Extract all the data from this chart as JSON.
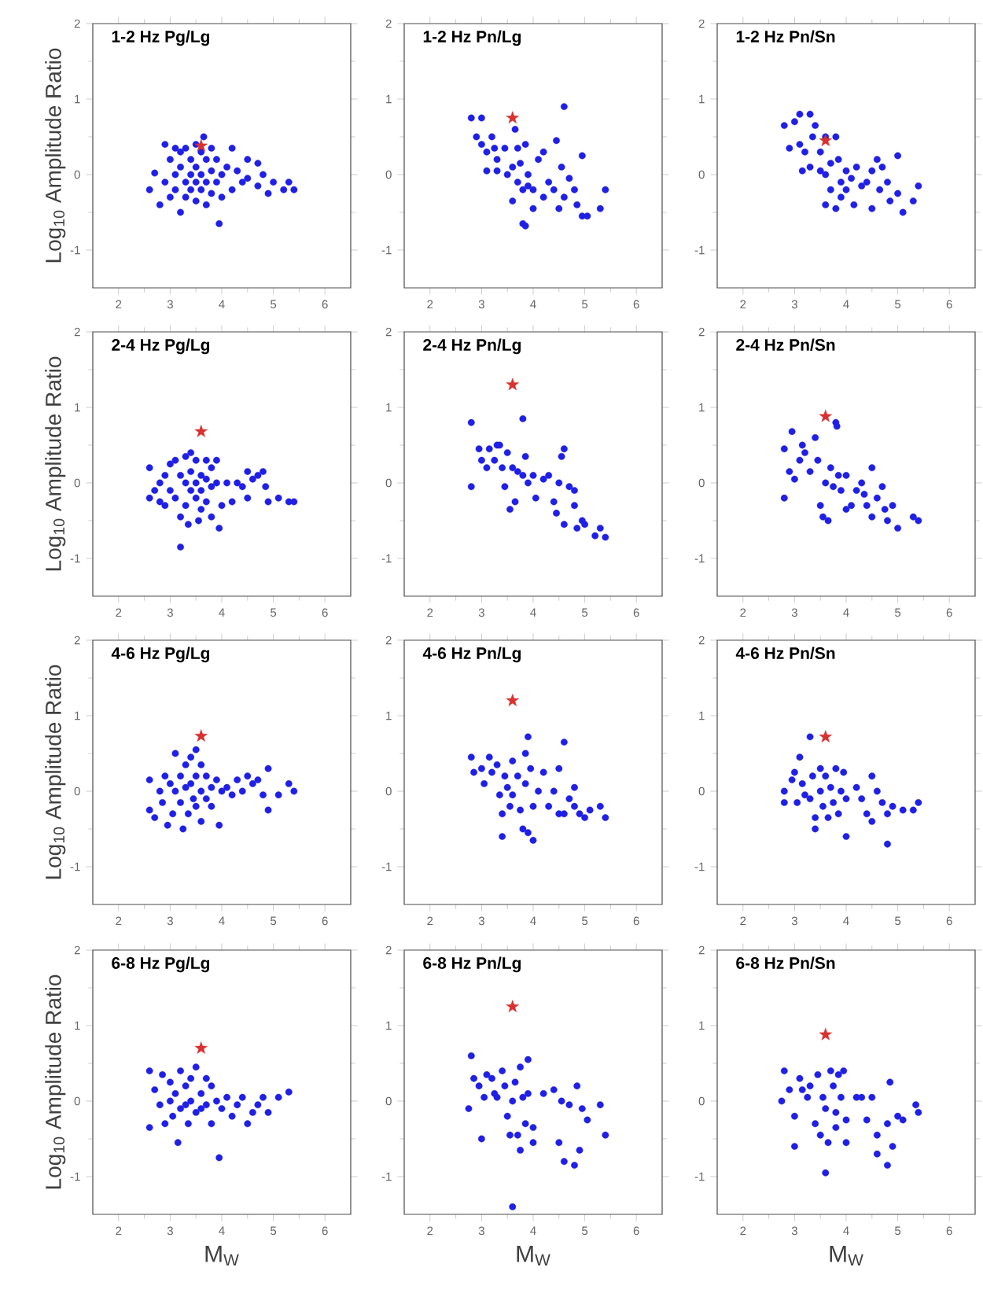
{
  "chart_data": [
    {
      "type": "scatter",
      "title": "1-2 Hz Pg/Lg",
      "ylabel": "Log$_{10}$ Amplitude Ratio",
      "xlim": [
        1.5,
        6.5
      ],
      "xticks": [
        2,
        3,
        4,
        5,
        6
      ],
      "ylim": [
        -1.5,
        2
      ],
      "yticks": [
        -1,
        0,
        1,
        2
      ],
      "series": [
        {
          "color": "#1f1fe6",
          "marker": "circle",
          "x": [
            2.6,
            2.7,
            2.8,
            2.9,
            2.9,
            3.0,
            3.0,
            3.1,
            3.1,
            3.1,
            3.2,
            3.2,
            3.2,
            3.3,
            3.3,
            3.3,
            3.4,
            3.4,
            3.4,
            3.5,
            3.5,
            3.5,
            3.5,
            3.6,
            3.6,
            3.6,
            3.65,
            3.7,
            3.7,
            3.7,
            3.8,
            3.8,
            3.8,
            3.9,
            3.9,
            3.95,
            4.0,
            4.0,
            4.1,
            4.2,
            4.2,
            4.3,
            4.4,
            4.5,
            4.5,
            4.7,
            4.7,
            4.8,
            4.9,
            5.0,
            5.2,
            5.3,
            5.4
          ],
          "values": [
            -0.2,
            0.02,
            -0.4,
            0.4,
            -0.1,
            0.2,
            -0.3,
            0.35,
            0.0,
            -0.2,
            0.3,
            0.1,
            -0.5,
            0.35,
            -0.1,
            -0.3,
            0.2,
            0.0,
            -0.2,
            0.4,
            0.1,
            -0.1,
            -0.35,
            0.3,
            0.0,
            -0.2,
            0.5,
            0.2,
            -0.1,
            -0.4,
            0.35,
            0.05,
            -0.25,
            0.2,
            -0.1,
            -0.65,
            0.0,
            -0.3,
            0.1,
            0.35,
            -0.2,
            0.05,
            -0.1,
            0.2,
            -0.05,
            0.15,
            -0.15,
            0.0,
            -0.25,
            -0.1,
            -0.2,
            -0.1,
            -0.2
          ]
        },
        {
          "color": "#d93030",
          "marker": "star",
          "x": [
            3.6
          ],
          "values": [
            0.38
          ]
        }
      ]
    },
    {
      "type": "scatter",
      "title": "1-2 Hz Pn/Lg",
      "xlim": [
        1.5,
        6.5
      ],
      "xticks": [
        2,
        3,
        4,
        5,
        6
      ],
      "ylim": [
        -1.5,
        2
      ],
      "yticks": [
        -1,
        0,
        1,
        2
      ],
      "series": [
        {
          "color": "#1f1fe6",
          "marker": "circle",
          "x": [
            2.8,
            2.9,
            3.0,
            3.0,
            3.1,
            3.1,
            3.2,
            3.25,
            3.3,
            3.3,
            3.45,
            3.5,
            3.55,
            3.6,
            3.6,
            3.65,
            3.7,
            3.7,
            3.75,
            3.8,
            3.8,
            3.85,
            3.85,
            3.9,
            3.9,
            4.0,
            4.0,
            4.1,
            4.2,
            4.2,
            4.3,
            4.4,
            4.45,
            4.5,
            4.55,
            4.6,
            4.6,
            4.7,
            4.8,
            4.85,
            4.95,
            4.95,
            5.05,
            5.3,
            5.4
          ],
          "values": [
            0.75,
            0.5,
            0.75,
            0.4,
            0.3,
            0.05,
            0.5,
            0.35,
            0.2,
            0.05,
            0.35,
            0.0,
            null,
            0.1,
            -0.35,
            0.6,
            0.35,
            -0.1,
            0.15,
            -0.2,
            -0.65,
            -0.68,
            0.4,
            0.0,
            -0.15,
            -0.2,
            -0.45,
            0.2,
            0.3,
            -0.3,
            -0.1,
            -0.2,
            0.45,
            -0.45,
            0.1,
            0.9,
            -0.3,
            -0.05,
            -0.2,
            -0.4,
            0.25,
            -0.55,
            -0.55,
            -0.45,
            -0.2
          ]
        },
        {
          "color": "#d93030",
          "marker": "star",
          "x": [
            3.6
          ],
          "values": [
            0.75
          ]
        }
      ]
    },
    {
      "type": "scatter",
      "title": "1-2 Hz Pn/Sn",
      "xlim": [
        1.5,
        6.5
      ],
      "xticks": [
        2,
        3,
        4,
        5,
        6
      ],
      "ylim": [
        -1.5,
        2
      ],
      "yticks": [
        -1,
        0,
        1,
        2
      ],
      "series": [
        {
          "color": "#1f1fe6",
          "marker": "circle",
          "x": [
            2.8,
            2.9,
            3.0,
            3.1,
            3.1,
            3.15,
            3.2,
            3.3,
            3.3,
            3.35,
            3.4,
            3.5,
            3.5,
            3.6,
            3.6,
            3.6,
            3.7,
            3.7,
            3.8,
            3.8,
            3.85,
            3.9,
            3.9,
            4.0,
            4.0,
            4.1,
            4.15,
            4.2,
            4.3,
            4.4,
            4.5,
            4.5,
            4.6,
            4.65,
            4.7,
            4.8,
            4.85,
            5.0,
            5.0,
            5.1,
            5.3,
            5.4
          ],
          "values": [
            0.65,
            0.35,
            0.7,
            0.8,
            0.4,
            0.05,
            0.3,
            0.8,
            0.1,
            0.5,
            0.65,
            0.3,
            0.05,
            0.5,
            0.0,
            -0.4,
            0.15,
            -0.2,
            0.5,
            -0.45,
            0.2,
            -0.1,
            -0.3,
            0.05,
            -0.2,
            -0.05,
            -0.4,
            0.1,
            -0.15,
            -0.1,
            0.05,
            -0.45,
            0.2,
            -0.2,
            0.1,
            -0.1,
            -0.35,
            0.25,
            -0.25,
            -0.5,
            -0.35,
            -0.15
          ]
        },
        {
          "color": "#d93030",
          "marker": "star",
          "x": [
            3.6
          ],
          "values": [
            0.45
          ]
        }
      ]
    },
    {
      "type": "scatter",
      "title": "2-4 Hz Pg/Lg",
      "ylabel": "Log$_{10}$ Amplitude Ratio",
      "xlim": [
        1.5,
        6.5
      ],
      "xticks": [
        2,
        3,
        4,
        5,
        6
      ],
      "ylim": [
        -1.5,
        2
      ],
      "yticks": [
        -1,
        0,
        1,
        2
      ],
      "series": [
        {
          "color": "#1f1fe6",
          "marker": "circle",
          "x": [
            2.6,
            2.6,
            2.7,
            2.8,
            2.8,
            2.9,
            2.9,
            3.0,
            3.0,
            3.1,
            3.1,
            3.2,
            3.2,
            3.2,
            3.3,
            3.3,
            3.3,
            3.35,
            3.4,
            3.4,
            3.4,
            3.5,
            3.5,
            3.5,
            3.55,
            3.6,
            3.6,
            3.6,
            3.7,
            3.7,
            3.7,
            3.8,
            3.8,
            3.8,
            3.9,
            3.9,
            3.95,
            4.0,
            4.1,
            4.2,
            4.3,
            4.4,
            4.5,
            4.5,
            4.6,
            4.7,
            4.8,
            4.85,
            4.9,
            5.1,
            5.3,
            5.4
          ],
          "values": [
            0.2,
            -0.2,
            -0.1,
            0.0,
            -0.25,
            0.1,
            -0.3,
            0.25,
            -0.1,
            0.3,
            -0.2,
            -0.85,
            0.1,
            -0.45,
            0.35,
            0.0,
            -0.3,
            -0.55,
            0.4,
            0.15,
            -0.1,
            0.3,
            0.0,
            -0.2,
            -0.5,
            0.1,
            -0.1,
            -0.35,
            0.3,
            0.05,
            -0.25,
            0.2,
            -0.05,
            -0.45,
            0.3,
            0.0,
            -0.6,
            -0.3,
            0.0,
            -0.25,
            0.0,
            -0.05,
            0.15,
            -0.2,
            0.05,
            0.1,
            0.15,
            -0.05,
            -0.25,
            -0.2,
            -0.25,
            -0.25
          ]
        },
        {
          "color": "#d93030",
          "marker": "star",
          "x": [
            3.6
          ],
          "values": [
            0.68
          ]
        }
      ]
    },
    {
      "type": "scatter",
      "title": "2-4 Hz Pn/Lg",
      "xlim": [
        1.5,
        6.5
      ],
      "xticks": [
        2,
        3,
        4,
        5,
        6
      ],
      "ylim": [
        -1.5,
        2
      ],
      "yticks": [
        -1,
        0,
        1,
        2
      ],
      "series": [
        {
          "color": "#1f1fe6",
          "marker": "circle",
          "x": [
            2.8,
            2.8,
            2.95,
            3.0,
            3.1,
            3.15,
            3.25,
            3.3,
            3.35,
            3.4,
            3.45,
            3.5,
            3.55,
            3.6,
            3.65,
            3.7,
            3.8,
            3.8,
            3.85,
            3.9,
            4.0,
            4.05,
            4.2,
            4.3,
            4.4,
            4.45,
            4.5,
            4.55,
            4.6,
            4.6,
            4.7,
            4.8,
            4.8,
            4.85,
            4.95,
            5.0,
            5.2,
            5.3,
            5.4
          ],
          "values": [
            0.8,
            -0.05,
            0.45,
            0.3,
            0.2,
            0.45,
            0.3,
            0.5,
            0.5,
            0.2,
            -0.05,
            0.4,
            -0.35,
            0.2,
            -0.25,
            0.15,
            0.85,
            0.1,
            0.35,
            0.0,
            0.1,
            -0.2,
            0.05,
            0.1,
            -0.25,
            -0.4,
            0.0,
            0.35,
            0.45,
            -0.55,
            -0.05,
            -0.1,
            -0.3,
            -0.6,
            -0.5,
            -0.55,
            -0.7,
            -0.6,
            -0.72
          ]
        },
        {
          "color": "#d93030",
          "marker": "star",
          "x": [
            3.6
          ],
          "values": [
            1.3
          ]
        }
      ]
    },
    {
      "type": "scatter",
      "title": "2-4 Hz Pn/Sn",
      "xlim": [
        1.5,
        6.5
      ],
      "xticks": [
        2,
        3,
        4,
        5,
        6
      ],
      "ylim": [
        -1.5,
        2
      ],
      "yticks": [
        -1,
        0,
        1,
        2
      ],
      "series": [
        {
          "color": "#1f1fe6",
          "marker": "circle",
          "x": [
            2.8,
            2.8,
            2.9,
            2.95,
            3.0,
            3.1,
            3.15,
            3.2,
            3.3,
            3.4,
            3.45,
            3.5,
            3.55,
            3.6,
            3.65,
            3.7,
            3.75,
            3.8,
            3.82,
            3.85,
            3.9,
            4.0,
            4.0,
            4.1,
            4.2,
            4.3,
            4.35,
            4.4,
            4.5,
            4.5,
            4.6,
            4.7,
            4.75,
            4.8,
            4.9,
            5.0,
            5.3,
            5.4
          ],
          "values": [
            0.45,
            -0.2,
            0.15,
            0.68,
            0.05,
            0.3,
            0.5,
            0.4,
            0.15,
            0.6,
            0.3,
            -0.3,
            -0.45,
            0.0,
            -0.5,
            0.2,
            -0.05,
            0.8,
            0.75,
            0.1,
            -0.1,
            -0.35,
            0.1,
            -0.3,
            -0.1,
            0.0,
            -0.15,
            -0.3,
            0.2,
            -0.45,
            -0.2,
            -0.05,
            -0.35,
            -0.5,
            -0.3,
            -0.6,
            -0.45,
            -0.5
          ]
        },
        {
          "color": "#d93030",
          "marker": "star",
          "x": [
            3.6
          ],
          "values": [
            0.88
          ]
        }
      ]
    },
    {
      "type": "scatter",
      "title": "4-6 Hz Pg/Lg",
      "ylabel": "Log$_{10}$ Amplitude Ratio",
      "xlim": [
        1.5,
        6.5
      ],
      "xticks": [
        2,
        3,
        4,
        5,
        6
      ],
      "ylim": [
        -1.5,
        2
      ],
      "yticks": [
        -1,
        0,
        1,
        2
      ],
      "series": [
        {
          "color": "#1f1fe6",
          "marker": "circle",
          "x": [
            2.6,
            2.6,
            2.7,
            2.8,
            2.85,
            2.9,
            2.95,
            3.0,
            3.05,
            3.1,
            3.1,
            3.2,
            3.2,
            3.25,
            3.3,
            3.3,
            3.35,
            3.4,
            3.4,
            3.45,
            3.5,
            3.5,
            3.5,
            3.6,
            3.6,
            3.6,
            3.7,
            3.7,
            3.8,
            3.8,
            3.9,
            3.95,
            4.0,
            4.1,
            4.2,
            4.3,
            4.4,
            4.5,
            4.6,
            4.7,
            4.8,
            4.9,
            4.9,
            5.1,
            5.3,
            5.4
          ],
          "values": [
            0.15,
            -0.25,
            -0.35,
            0.0,
            -0.15,
            0.2,
            -0.45,
            0.1,
            -0.3,
            0.5,
            0.0,
            0.2,
            -0.15,
            -0.5,
            0.35,
            0.05,
            -0.3,
            0.45,
            0.1,
            -0.1,
            0.55,
            0.2,
            -0.2,
            0.35,
            0.0,
            -0.4,
            0.2,
            -0.1,
            0.05,
            -0.2,
            0.15,
            -0.45,
            0.0,
            0.05,
            -0.05,
            0.15,
            0.0,
            0.2,
            0.1,
            0.15,
            -0.05,
            0.3,
            -0.25,
            -0.05,
            0.1,
            0.0
          ]
        },
        {
          "color": "#d93030",
          "marker": "star",
          "x": [
            3.6
          ],
          "values": [
            0.73
          ]
        }
      ]
    },
    {
      "type": "scatter",
      "title": "4-6 Hz Pn/Lg",
      "xlim": [
        1.5,
        6.5
      ],
      "xticks": [
        2,
        3,
        4,
        5,
        6
      ],
      "ylim": [
        -1.5,
        2
      ],
      "yticks": [
        -1,
        0,
        1,
        2
      ],
      "series": [
        {
          "color": "#1f1fe6",
          "marker": "circle",
          "x": [
            2.8,
            2.85,
            3.0,
            3.05,
            3.15,
            3.2,
            3.3,
            3.35,
            3.4,
            3.4,
            3.45,
            3.5,
            3.55,
            3.6,
            3.6,
            3.7,
            3.75,
            3.8,
            3.85,
            3.85,
            3.9,
            3.9,
            3.95,
            4.0,
            4.0,
            4.1,
            4.2,
            4.3,
            4.4,
            4.5,
            4.5,
            4.6,
            4.6,
            4.7,
            4.8,
            4.8,
            4.9,
            5.0,
            5.1,
            5.3,
            5.4
          ],
          "values": [
            0.45,
            0.25,
            0.3,
            0.1,
            0.45,
            0.25,
            0.35,
            -0.05,
            -0.3,
            -0.6,
            0.2,
            0.05,
            -0.2,
            0.4,
            -0.05,
            0.2,
            -0.25,
            -0.5,
            0.5,
            0.1,
            0.72,
            -0.55,
            0.3,
            -0.65,
            -0.2,
            0.0,
            0.25,
            -0.2,
            0.0,
            0.3,
            -0.3,
            0.65,
            -0.3,
            -0.1,
            0.05,
            -0.2,
            -0.3,
            -0.35,
            -0.25,
            -0.2,
            -0.35
          ]
        },
        {
          "color": "#d93030",
          "marker": "star",
          "x": [
            3.6
          ],
          "values": [
            1.2
          ]
        }
      ]
    },
    {
      "type": "scatter",
      "title": "4-6 Hz Pn/Sn",
      "xlim": [
        1.5,
        6.5
      ],
      "xticks": [
        2,
        3,
        4,
        5,
        6
      ],
      "ylim": [
        -1.5,
        2
      ],
      "yticks": [
        -1,
        0,
        1,
        2
      ],
      "series": [
        {
          "color": "#1f1fe6",
          "marker": "circle",
          "x": [
            2.8,
            2.8,
            2.95,
            3.0,
            3.05,
            3.1,
            3.15,
            3.2,
            3.3,
            3.3,
            3.35,
            3.4,
            3.4,
            3.5,
            3.5,
            3.55,
            3.6,
            3.65,
            3.7,
            3.75,
            3.8,
            3.85,
            3.9,
            3.95,
            4.0,
            4.0,
            4.2,
            4.3,
            4.4,
            4.5,
            4.5,
            4.6,
            4.7,
            4.8,
            4.8,
            4.9,
            5.1,
            5.3,
            5.4
          ],
          "values": [
            0.0,
            -0.15,
            0.15,
            0.25,
            -0.15,
            0.45,
            0.1,
            -0.05,
            0.72,
            -0.1,
            0.2,
            -0.35,
            -0.5,
            0.0,
            0.3,
            -0.2,
            0.2,
            -0.35,
            0.05,
            -0.15,
            0.3,
            -0.3,
            0.0,
            0.25,
            -0.6,
            -0.1,
            0.05,
            -0.1,
            -0.3,
            0.2,
            -0.4,
            0.0,
            -0.15,
            -0.7,
            -0.3,
            -0.2,
            -0.25,
            -0.25,
            -0.15
          ]
        },
        {
          "color": "#d93030",
          "marker": "star",
          "x": [
            3.6
          ],
          "values": [
            0.72
          ]
        }
      ]
    },
    {
      "type": "scatter",
      "title": "6-8 Hz Pg/Lg",
      "xlabel": "M$_{W}$",
      "ylabel": "Log$_{10}$ Amplitude Ratio",
      "xlim": [
        1.5,
        6.5
      ],
      "xticks": [
        2,
        3,
        4,
        5,
        6
      ],
      "ylim": [
        -1.5,
        2
      ],
      "yticks": [
        -1,
        0,
        1,
        2
      ],
      "series": [
        {
          "color": "#1f1fe6",
          "marker": "circle",
          "x": [
            2.6,
            2.6,
            2.7,
            2.8,
            2.85,
            2.9,
            3.0,
            3.0,
            3.05,
            3.1,
            3.15,
            3.2,
            3.2,
            3.3,
            3.3,
            3.35,
            3.4,
            3.4,
            3.5,
            3.5,
            3.6,
            3.6,
            3.7,
            3.7,
            3.8,
            3.8,
            3.9,
            3.95,
            4.0,
            4.1,
            4.2,
            4.3,
            4.4,
            4.5,
            4.6,
            4.7,
            4.8,
            4.9,
            5.1,
            5.3
          ],
          "values": [
            0.4,
            -0.35,
            0.15,
            -0.05,
            0.35,
            -0.3,
            0.25,
            0.0,
            -0.2,
            0.1,
            -0.55,
            0.4,
            -0.1,
            0.2,
            -0.05,
            -0.3,
            0.3,
            0.0,
            0.45,
            -0.15,
            0.1,
            -0.1,
            0.3,
            -0.05,
            0.2,
            -0.3,
            0.0,
            -0.75,
            -0.1,
            0.05,
            -0.2,
            -0.05,
            0.05,
            -0.3,
            -0.15,
            -0.05,
            0.05,
            -0.15,
            0.05,
            0.12
          ]
        },
        {
          "color": "#d93030",
          "marker": "star",
          "x": [
            3.6
          ],
          "values": [
            0.7
          ]
        }
      ]
    },
    {
      "type": "scatter",
      "title": "6-8 Hz Pn/Lg",
      "xlabel": "M$_{W}$",
      "xlim": [
        1.5,
        6.5
      ],
      "xticks": [
        2,
        3,
        4,
        5,
        6
      ],
      "ylim": [
        -1.5,
        2
      ],
      "yticks": [
        -1,
        0,
        1,
        2
      ],
      "series": [
        {
          "color": "#1f1fe6",
          "marker": "circle",
          "x": [
            2.75,
            2.8,
            2.85,
            2.95,
            3.0,
            3.05,
            3.1,
            3.2,
            3.25,
            3.3,
            3.4,
            3.45,
            3.5,
            3.55,
            3.6,
            3.6,
            3.65,
            3.7,
            3.75,
            3.75,
            3.8,
            3.85,
            3.9,
            3.9,
            4.0,
            4.0,
            4.2,
            4.4,
            4.5,
            4.55,
            4.6,
            4.7,
            4.8,
            4.85,
            4.9,
            4.95,
            5.05,
            5.3,
            5.4
          ],
          "values": [
            -0.1,
            0.6,
            0.3,
            0.2,
            -0.5,
            0.05,
            0.35,
            0.3,
            0.1,
            0.05,
            0.4,
            0.2,
            -0.2,
            -0.45,
            0.0,
            -1.4,
            0.25,
            -0.45,
            0.45,
            -0.65,
            0.05,
            -0.3,
            0.55,
            0.1,
            -0.55,
            -0.35,
            0.1,
            0.15,
            -0.55,
            0.0,
            -0.8,
            -0.05,
            -0.85,
            0.2,
            -0.65,
            -0.1,
            -0.25,
            -0.05,
            -0.45
          ]
        },
        {
          "color": "#d93030",
          "marker": "star",
          "x": [
            3.6
          ],
          "values": [
            1.25
          ]
        }
      ]
    },
    {
      "type": "scatter",
      "title": "6-8 Hz Pn/Sn",
      "xlabel": "M$_{W}$",
      "xlim": [
        1.5,
        6.5
      ],
      "xticks": [
        2,
        3,
        4,
        5,
        6
      ],
      "ylim": [
        -1.5,
        2
      ],
      "yticks": [
        -1,
        0,
        1,
        2
      ],
      "series": [
        {
          "color": "#1f1fe6",
          "marker": "circle",
          "x": [
            2.75,
            2.8,
            2.9,
            3.0,
            3.0,
            3.1,
            3.15,
            3.25,
            3.3,
            3.4,
            3.45,
            3.5,
            3.55,
            3.6,
            3.6,
            3.65,
            3.7,
            3.75,
            3.8,
            3.8,
            3.85,
            3.9,
            3.95,
            4.0,
            4.0,
            4.2,
            4.3,
            4.4,
            4.5,
            4.6,
            4.6,
            4.8,
            4.8,
            4.85,
            4.9,
            5.0,
            5.1,
            5.35,
            5.4
          ],
          "values": [
            0.0,
            0.4,
            0.15,
            -0.6,
            -0.2,
            0.3,
            0.15,
            0.05,
            0.2,
            -0.3,
            0.35,
            -0.45,
            0.05,
            -0.95,
            -0.1,
            -0.55,
            0.4,
            0.2,
            -0.15,
            -0.35,
            0.35,
            0.05,
            0.4,
            -0.55,
            -0.25,
            0.05,
            0.05,
            -0.25,
            0.05,
            -0.45,
            -0.7,
            -0.3,
            -0.85,
            0.25,
            -0.6,
            -0.2,
            -0.25,
            -0.05,
            -0.15
          ]
        },
        {
          "color": "#d93030",
          "marker": "star",
          "x": [
            3.6
          ],
          "values": [
            0.88
          ]
        }
      ]
    }
  ]
}
